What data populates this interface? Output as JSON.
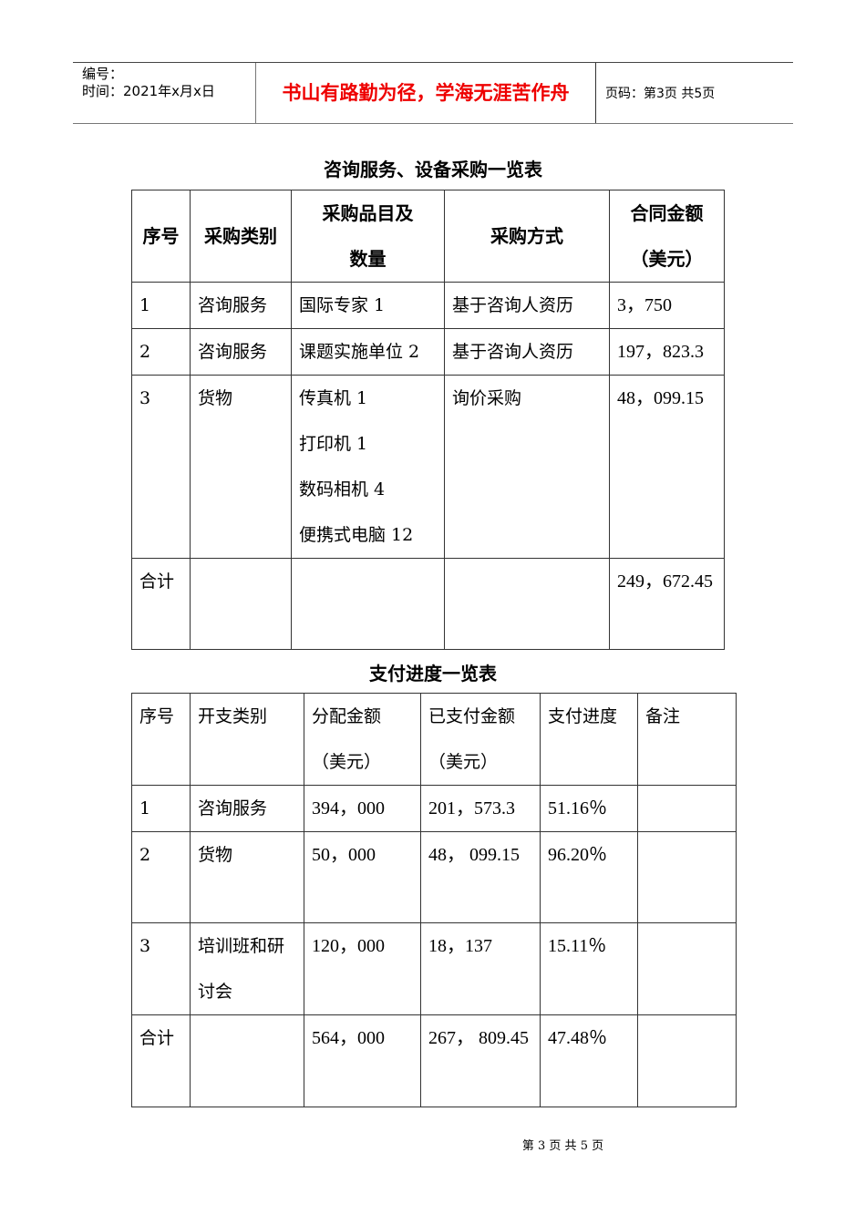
{
  "header": {
    "number_label": "编号：",
    "time_label": "时间：2021年x月x日",
    "motto": "书山有路勤为径，学海无涯苦作舟",
    "page_info": "页码：第3页 共5页"
  },
  "table1": {
    "title": "咨询服务、设备采购一览表",
    "headers": [
      "序号",
      "采购类别",
      "采购品目及数量",
      "采购方式",
      "合同金额（美元）"
    ],
    "rows": [
      [
        "1",
        "咨询服务",
        "国际专家 1",
        "基于咨询人资历",
        "3，750"
      ],
      [
        "2",
        "咨询服务",
        "课题实施单位 2",
        "基于咨询人资历",
        "197，823.3"
      ],
      [
        "3",
        "货物",
        "传真机 1\n打印机 1\n数码相机 4\n便携式电脑 12",
        "询价采购",
        "48，099.15"
      ],
      [
        "合计",
        "",
        "",
        "",
        "249，672.45"
      ]
    ]
  },
  "table2": {
    "title": "支付进度一览表",
    "headers": [
      "序号",
      "开支类别",
      "分配金额（美元）",
      "已支付金额（美元）",
      "支付进度",
      "备注"
    ],
    "rows": [
      [
        "1",
        "咨询服务",
        "394，000",
        "201，573.3",
        "51.16％",
        ""
      ],
      [
        "2",
        "货物",
        "50，000",
        "48， 099.15",
        "96.20％",
        ""
      ],
      [
        "3",
        "培训班和研讨会",
        "120，000",
        "18，137",
        "15.11％",
        ""
      ],
      [
        "合计",
        "",
        "564，000",
        "267， 809.45",
        "47.48％",
        ""
      ]
    ]
  },
  "footer": "第 3 页 共 5 页"
}
